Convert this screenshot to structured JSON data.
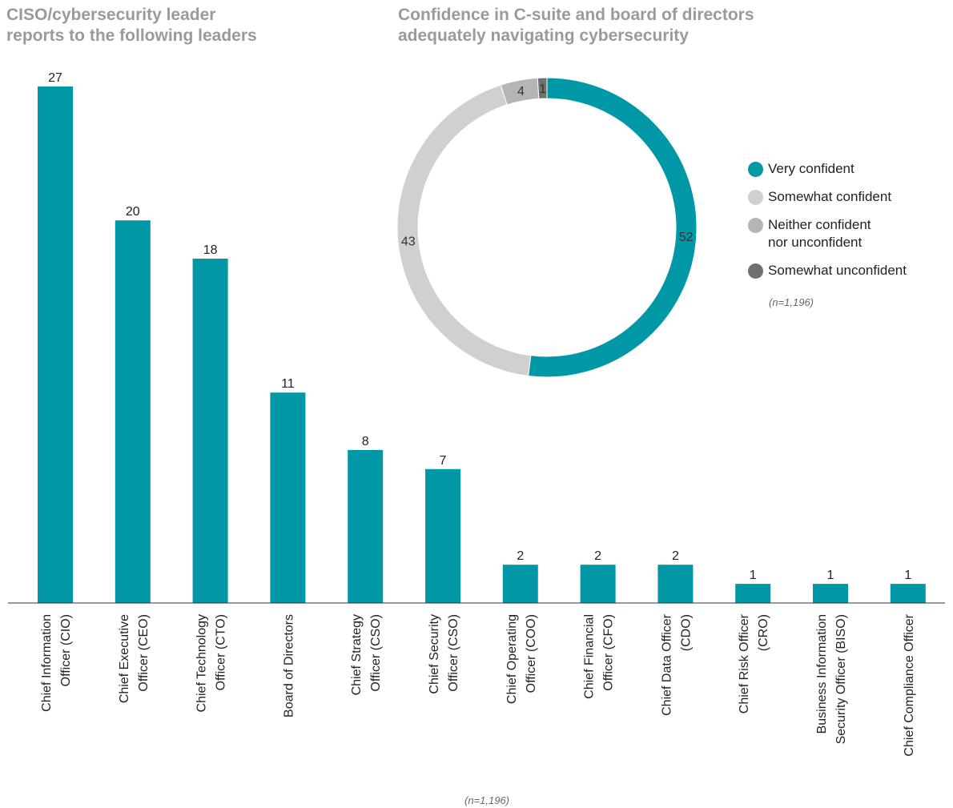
{
  "bar_title": "CISO/cybersecurity leader\nreports to the following leaders",
  "donut_title": "Confidence in C-suite and board of directors\nadequately navigating cybersecurity",
  "donut_note": "(n=1,196)",
  "bar_note": "(n=1,196)",
  "colors": {
    "teal": "#0097a7",
    "light_gray": "#d0d0d0",
    "mid_gray": "#b5b5b5",
    "dark_gray": "#707070"
  },
  "chart_data": [
    {
      "type": "bar",
      "categories": [
        "Chief Information\nOfficer (CIO)",
        "Chief Executive\nOfficer (CEO)",
        "Chief Technology\nOfficer (CTO)",
        "Board of Directors",
        "Chief Strategy\nOfficer (CSO)",
        "Chief Security\nOfficer (CSO)",
        "Chief Operating\nOfficer (COO)",
        "Chief Financial\nOfficer (CFO)",
        "Chief Data Officer\n(CDO)",
        "Chief Risk Officer\n(CRO)",
        "Business Information\nSecurity Officer (BISO)",
        "Chief Compliance Officer"
      ],
      "values": [
        27,
        20,
        18,
        11,
        8,
        7,
        2,
        2,
        2,
        1,
        1,
        1
      ],
      "title": "CISO/cybersecurity leader reports to the following leaders",
      "ylim": [
        0,
        27
      ],
      "grid": false,
      "color": "#0097a7"
    },
    {
      "type": "pie",
      "title": "Confidence in C-suite and board of directors adequately navigating cybersecurity",
      "labels": [
        "Very confident",
        "Somewhat confident",
        "Neither confident\nnor unconfident",
        "Somewhat unconfident"
      ],
      "values": [
        52,
        43,
        4,
        1
      ],
      "colors": [
        "#0097a7",
        "#d0d0d0",
        "#b5b5b5",
        "#707070"
      ],
      "donut": true,
      "legend": "right"
    }
  ]
}
